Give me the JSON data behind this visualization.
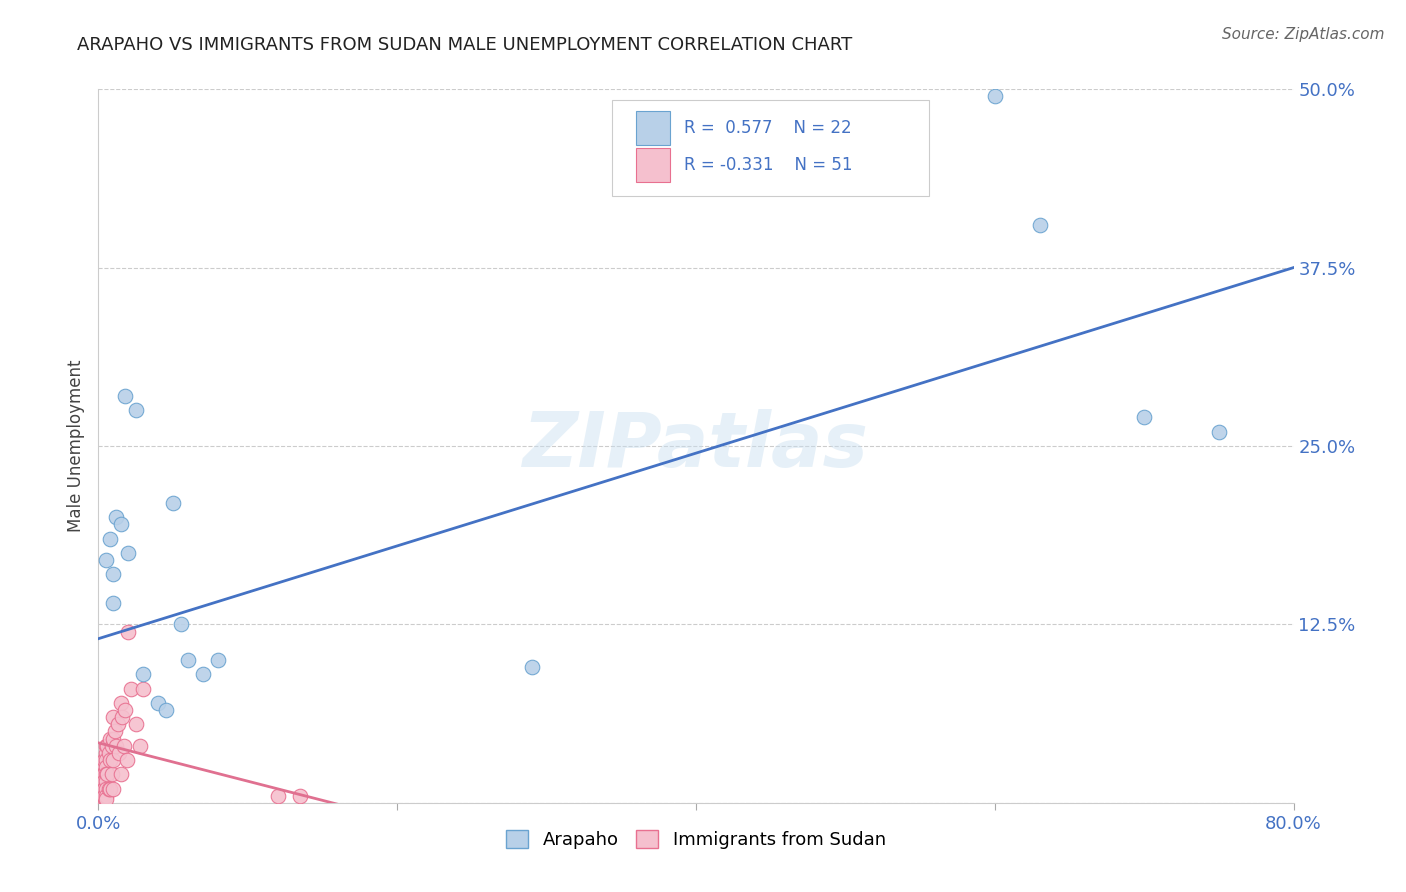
{
  "title": "ARAPAHO VS IMMIGRANTS FROM SUDAN MALE UNEMPLOYMENT CORRELATION CHART",
  "source": "Source: ZipAtlas.com",
  "ylabel": "Male Unemployment",
  "xlim": [
    0.0,
    0.8
  ],
  "ylim": [
    0.0,
    0.5
  ],
  "ytick_labels": [
    "",
    "12.5%",
    "25.0%",
    "37.5%",
    "50.0%"
  ],
  "xtick_labels": [
    "0.0%",
    "",
    "",
    "",
    "80.0%"
  ],
  "watermark": "ZIPatlas",
  "arapaho_color": "#b8d0e8",
  "arapaho_edge_color": "#6aa3d0",
  "sudan_color": "#f5c0ce",
  "sudan_edge_color": "#e87090",
  "blue_line_color": "#4472c4",
  "pink_line_color": "#e07090",
  "arapaho_R": 0.577,
  "arapaho_N": 22,
  "sudan_R": -0.331,
  "sudan_N": 51,
  "grid_color": "#cccccc",
  "background_color": "#ffffff",
  "blue_line_x0": 0.0,
  "blue_line_y0": 0.115,
  "blue_line_x1": 0.8,
  "blue_line_y1": 0.375,
  "pink_line_x0": 0.0,
  "pink_line_y0": 0.042,
  "pink_line_x1": 0.175,
  "pink_line_y1": -0.005,
  "arapaho_x": [
    0.005,
    0.008,
    0.01,
    0.01,
    0.012,
    0.015,
    0.018,
    0.02,
    0.025,
    0.03,
    0.04,
    0.045,
    0.05,
    0.055,
    0.06,
    0.07,
    0.08,
    0.29,
    0.6,
    0.63,
    0.7,
    0.75
  ],
  "arapaho_y": [
    0.17,
    0.185,
    0.16,
    0.14,
    0.2,
    0.195,
    0.285,
    0.175,
    0.275,
    0.09,
    0.07,
    0.065,
    0.21,
    0.125,
    0.1,
    0.09,
    0.1,
    0.095,
    0.495,
    0.405,
    0.27,
    0.26
  ],
  "sudan_x": [
    0.002,
    0.002,
    0.002,
    0.003,
    0.003,
    0.003,
    0.003,
    0.004,
    0.004,
    0.004,
    0.004,
    0.004,
    0.005,
    0.005,
    0.005,
    0.005,
    0.005,
    0.005,
    0.005,
    0.005,
    0.005,
    0.006,
    0.006,
    0.007,
    0.007,
    0.008,
    0.008,
    0.008,
    0.009,
    0.009,
    0.01,
    0.01,
    0.01,
    0.01,
    0.011,
    0.012,
    0.013,
    0.014,
    0.015,
    0.015,
    0.016,
    0.017,
    0.018,
    0.019,
    0.02,
    0.022,
    0.025,
    0.028,
    0.03,
    0.12,
    0.135
  ],
  "sudan_y": [
    0.015,
    0.01,
    0.005,
    0.025,
    0.02,
    0.01,
    0.005,
    0.03,
    0.02,
    0.015,
    0.01,
    0.005,
    0.04,
    0.035,
    0.03,
    0.025,
    0.02,
    0.015,
    0.01,
    0.005,
    0.003,
    0.04,
    0.02,
    0.035,
    0.01,
    0.045,
    0.03,
    0.01,
    0.04,
    0.02,
    0.06,
    0.045,
    0.03,
    0.01,
    0.05,
    0.04,
    0.055,
    0.035,
    0.07,
    0.02,
    0.06,
    0.04,
    0.065,
    0.03,
    0.12,
    0.08,
    0.055,
    0.04,
    0.08,
    0.005,
    0.005
  ]
}
